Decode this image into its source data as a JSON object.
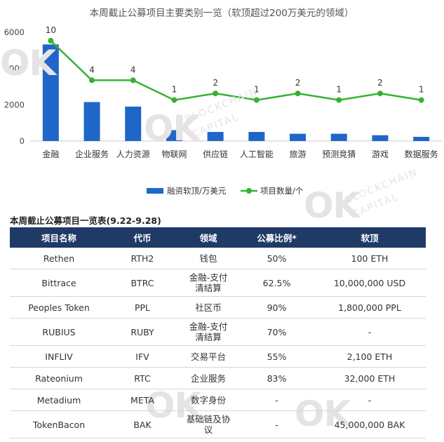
{
  "chart_data": {
    "type": "bar+line",
    "title": "本周截止公募项目主要类别一览（软顶超过200万美元的领域）",
    "categories": [
      "金融",
      "企业服务",
      "人力资源",
      "物联网",
      "供应链",
      "人工智能",
      "旅游",
      "预测竞猜",
      "游戏",
      "数据服务"
    ],
    "series": [
      {
        "name": "融资软顶/万美元",
        "type": "bar",
        "color": "#1f66c9",
        "values": [
          5330,
          2150,
          1900,
          600,
          500,
          500,
          400,
          400,
          320,
          230
        ]
      },
      {
        "name": "项目数量/个",
        "type": "line",
        "color": "#35b233",
        "values": [
          10,
          4,
          4,
          1,
          2,
          1,
          2,
          1,
          2,
          1
        ]
      }
    ],
    "yticks": [
      "0",
      "2000",
      "4000",
      "6000"
    ],
    "ylim": [
      0,
      6000
    ],
    "legend": "bottom",
    "grid": false
  },
  "watermark": {
    "brand": "OK",
    "line1": "BLOCKCHAIN",
    "line2": "CAPITAL"
  },
  "table": {
    "title": "本周截止公募项目一览表(9.22-9.28)",
    "headers": [
      "项目名称",
      "代币",
      "领域",
      "公募比例*",
      "软顶"
    ],
    "rows": [
      {
        "name": "Rethen",
        "token": "RTH2",
        "domain": [
          "钱包"
        ],
        "ratio": "50%",
        "softcap": "100 ETH"
      },
      {
        "name": "Bittrace",
        "token": "BTRC",
        "domain": [
          "金融-支付",
          "清结算"
        ],
        "ratio": "62.5%",
        "softcap": "10,000,000 USD"
      },
      {
        "name": "Peoples Token",
        "token": "PPL",
        "domain": [
          "社区币"
        ],
        "ratio": "90%",
        "softcap": "1,800,000  PPL"
      },
      {
        "name": "RUBIUS",
        "token": "RUBY",
        "domain": [
          "金融-支付",
          "清结算"
        ],
        "ratio": "70%",
        "softcap": "-"
      },
      {
        "name": "INFLIV",
        "token": "IFV",
        "domain": [
          "交易平台"
        ],
        "ratio": "55%",
        "softcap": "2,100 ETH"
      },
      {
        "name": "Rateonium",
        "token": "RTC",
        "domain": [
          "企业服务"
        ],
        "ratio": "83%",
        "softcap": "32,000 ETH"
      },
      {
        "name": "Metadium",
        "token": "META",
        "domain": [
          "数字身份"
        ],
        "ratio": "-",
        "softcap": "-"
      },
      {
        "name": "TokenBacon",
        "token": "BAK",
        "domain": [
          "基础链及协",
          "议"
        ],
        "ratio": "-",
        "softcap": "45,000,000 BAK"
      }
    ]
  }
}
